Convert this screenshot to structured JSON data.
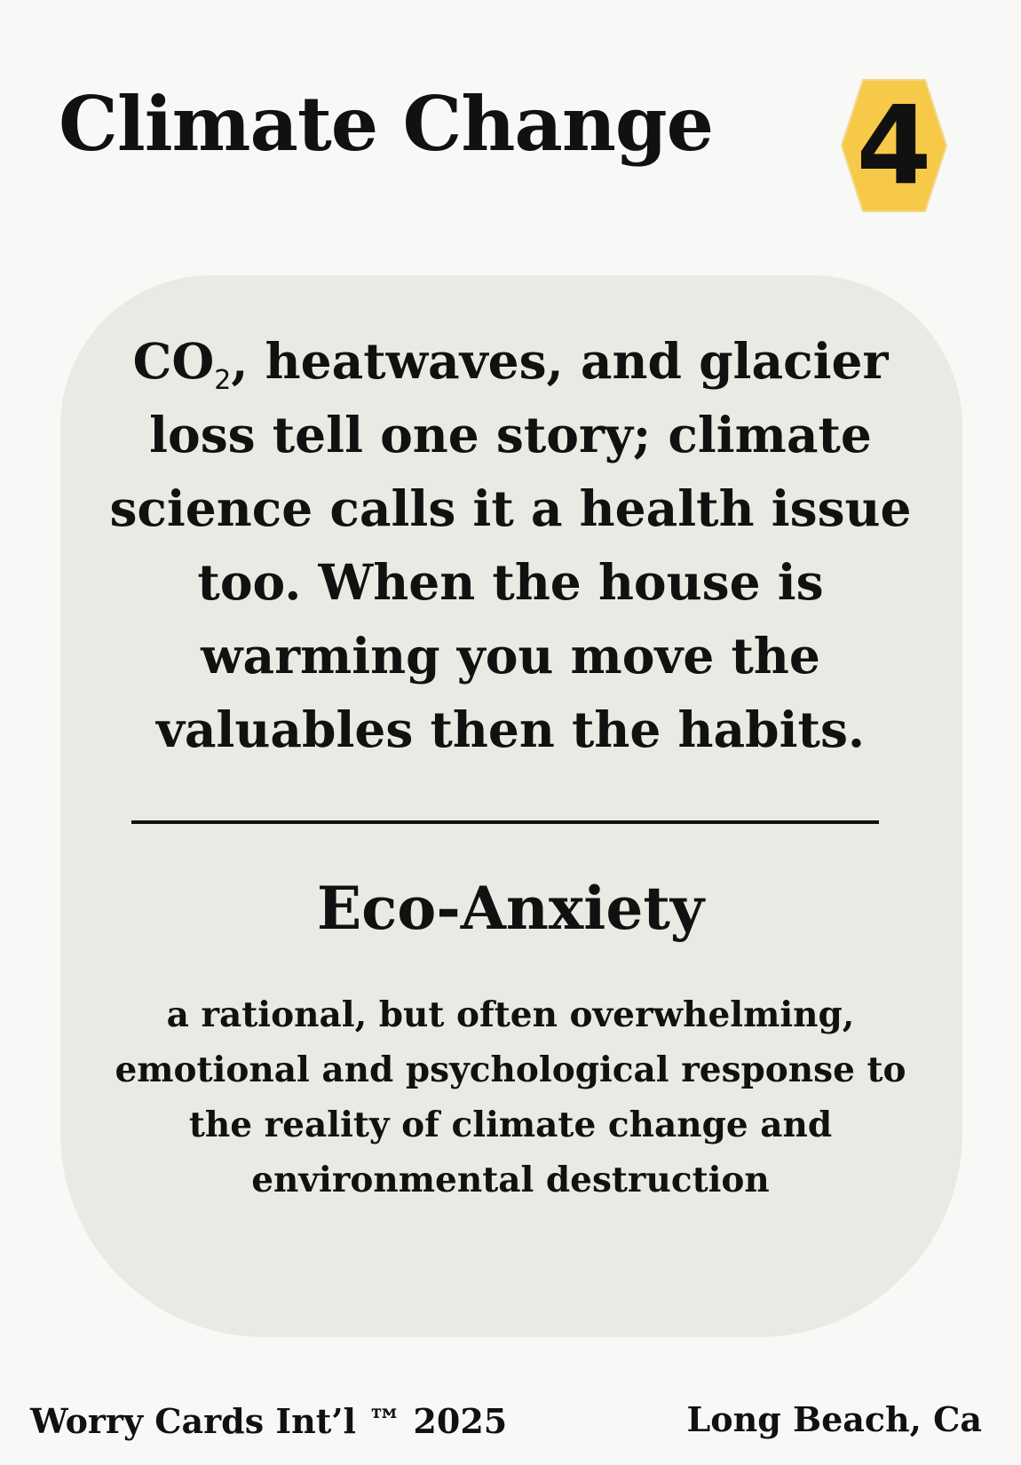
{
  "card": {
    "title": "Climate Change",
    "number": "4",
    "badge_color": "#f6c948",
    "panel_color": "#e8ebe3",
    "intro": {
      "lead": "CO",
      "subscript": "2",
      "rest": ", heatwaves, and glacier loss tell one story; climate science calls it a health issue too. When the house is warming you move the valuables then the habits."
    },
    "term": "Eco-Anxiety",
    "definition": "a rational, but often overwhelming, emotional and psychological response to the reality of climate change and environmental destruction"
  },
  "footer": {
    "left": "Worry Cards Int’l ™ 2025",
    "right": "Long Beach, Ca"
  }
}
